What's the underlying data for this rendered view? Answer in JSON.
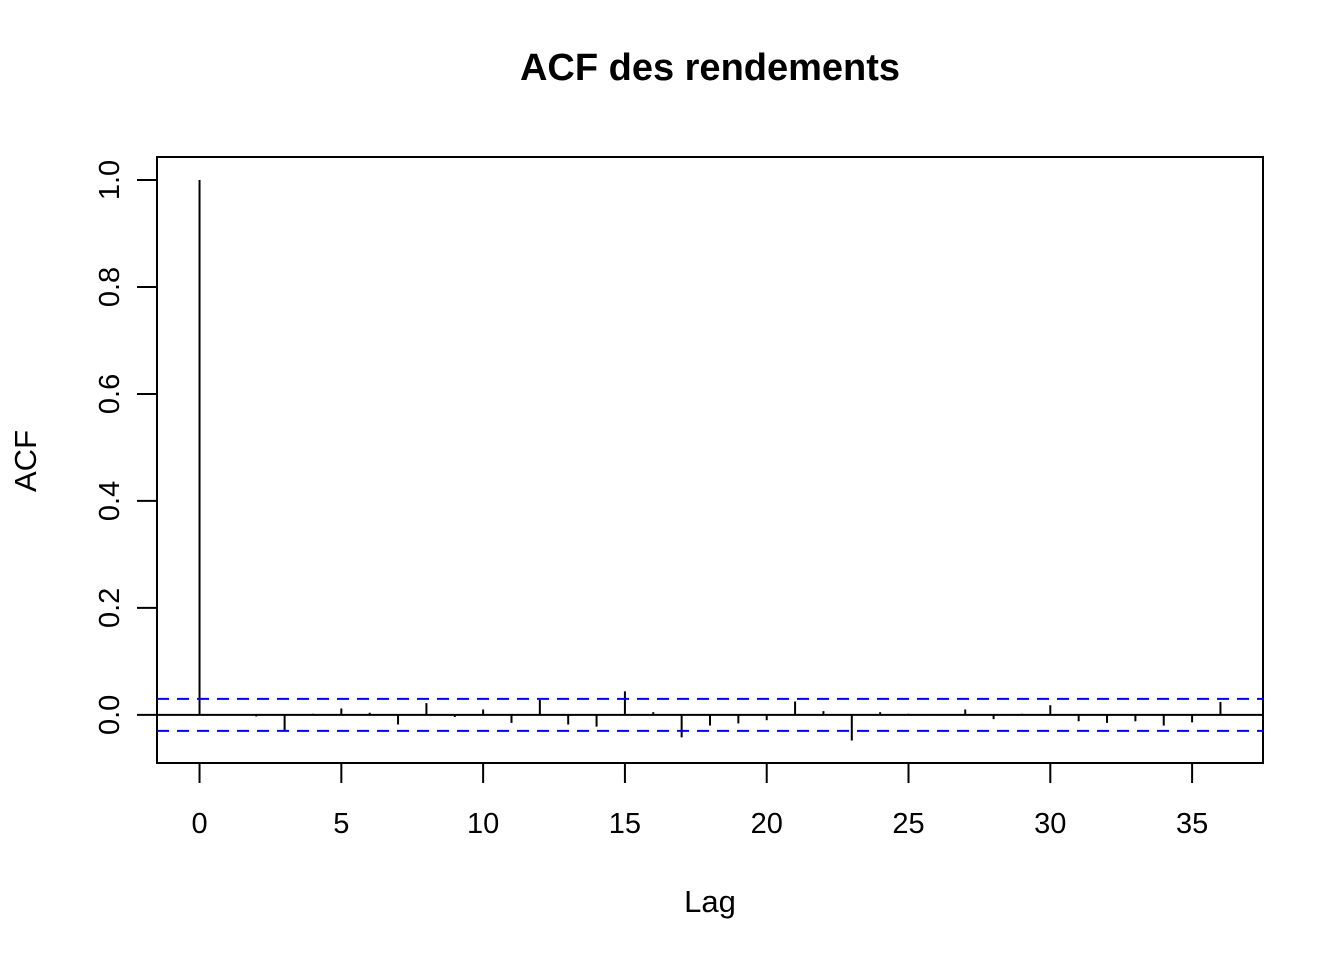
{
  "chart_data": {
    "type": "bar",
    "title": "ACF des rendements",
    "xlabel": "Lag",
    "ylabel": "ACF",
    "xlim": [
      -1.5,
      37.5
    ],
    "ylim": [
      -0.09,
      1.043
    ],
    "x_ticks": [
      0,
      5,
      10,
      15,
      20,
      25,
      30,
      35
    ],
    "x_tick_labels": [
      "0",
      "5",
      "10",
      "15",
      "20",
      "25",
      "30",
      "35"
    ],
    "y_ticks": [
      0.0,
      0.2,
      0.4,
      0.6,
      0.8,
      1.0
    ],
    "y_tick_labels": [
      "0.0",
      "0.2",
      "0.4",
      "0.6",
      "0.8",
      "1.0"
    ],
    "lags": [
      0,
      1,
      2,
      3,
      4,
      5,
      6,
      7,
      8,
      9,
      10,
      11,
      12,
      13,
      14,
      15,
      16,
      17,
      18,
      19,
      20,
      21,
      22,
      23,
      24,
      25,
      26,
      27,
      28,
      29,
      30,
      31,
      32,
      33,
      34,
      35,
      36
    ],
    "values": [
      1.0,
      0.001,
      -0.003,
      -0.03,
      0.002,
      0.012,
      0.004,
      -0.018,
      0.022,
      -0.004,
      0.01,
      -0.015,
      0.028,
      -0.018,
      -0.022,
      0.044,
      0.005,
      -0.042,
      -0.02,
      -0.016,
      -0.01,
      0.025,
      0.007,
      -0.048,
      0.005,
      0.002,
      -0.001,
      0.01,
      -0.008,
      0.002,
      0.018,
      -0.012,
      -0.015,
      -0.012,
      -0.02,
      -0.014,
      0.024
    ],
    "ci_upper": 0.03,
    "ci_lower": -0.03,
    "zero_line": 0,
    "colors": {
      "bars": "#000000",
      "ci_lines": "#0000ff",
      "zero_line": "#000000"
    },
    "grid": false
  }
}
